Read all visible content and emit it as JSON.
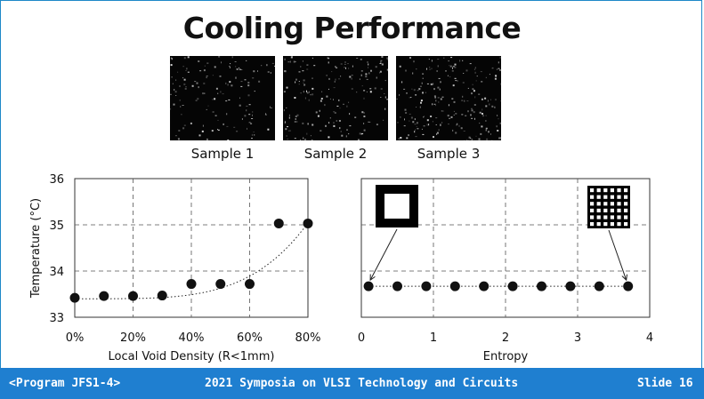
{
  "slide": {
    "title": "Cooling Performance"
  },
  "samples": [
    {
      "caption": "Sample 1"
    },
    {
      "caption": "Sample 2"
    },
    {
      "caption": "Sample 3"
    }
  ],
  "chart_data": [
    {
      "type": "scatter",
      "xlabel": "Local Void Density (R<1mm)",
      "ylabel": "Temperature (°C)",
      "xlim": [
        0,
        80
      ],
      "ylim": [
        33,
        36
      ],
      "x_ticks": [
        "0%",
        "20%",
        "40%",
        "60%",
        "80%"
      ],
      "x_tick_values": [
        0,
        20,
        40,
        60,
        80
      ],
      "y_ticks": [
        "33",
        "34",
        "35",
        "36"
      ],
      "y_tick_values": [
        33,
        34,
        35,
        36
      ],
      "grid": true,
      "trendline": "dotted exponential",
      "points": [
        {
          "x": 0,
          "y": 33.42
        },
        {
          "x": 10,
          "y": 33.46
        },
        {
          "x": 20,
          "y": 33.46
        },
        {
          "x": 30,
          "y": 33.47
        },
        {
          "x": 40,
          "y": 33.72
        },
        {
          "x": 50,
          "y": 33.72
        },
        {
          "x": 60,
          "y": 33.72
        },
        {
          "x": 70,
          "y": 35.03
        },
        {
          "x": 80,
          "y": 35.03
        }
      ]
    },
    {
      "type": "scatter",
      "xlabel": "Entropy",
      "ylabel": "",
      "xlim": [
        0,
        4
      ],
      "ylim": [
        33,
        36
      ],
      "x_ticks": [
        "0",
        "1",
        "2",
        "3",
        "4"
      ],
      "x_tick_values": [
        0,
        1,
        2,
        3,
        4
      ],
      "grid": true,
      "trendline": "dotted horizontal",
      "points": [
        {
          "x": 0.1,
          "y": 33.67
        },
        {
          "x": 0.5,
          "y": 33.67
        },
        {
          "x": 0.9,
          "y": 33.67
        },
        {
          "x": 1.3,
          "y": 33.67
        },
        {
          "x": 1.7,
          "y": 33.67
        },
        {
          "x": 2.1,
          "y": 33.67
        },
        {
          "x": 2.5,
          "y": 33.67
        },
        {
          "x": 2.9,
          "y": 33.67
        },
        {
          "x": 3.3,
          "y": 33.67
        },
        {
          "x": 3.7,
          "y": 33.67
        }
      ],
      "insets": [
        "square-frame-pattern-icon",
        "grid-mesh-pattern-icon"
      ]
    }
  ],
  "footer": {
    "program": "<Program JFS1-4>",
    "conference": "2021 Symposia on VLSI Technology and Circuits",
    "slide_number": "Slide 16"
  },
  "colors": {
    "footer_bg": "#1f7fd0",
    "accent_border": "#1e88c8"
  }
}
